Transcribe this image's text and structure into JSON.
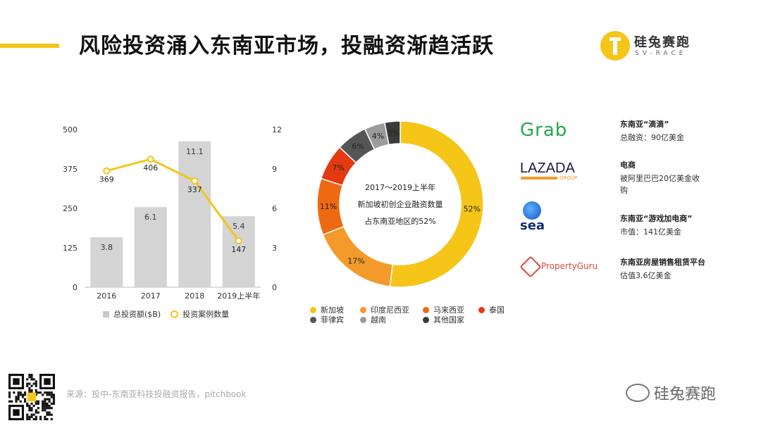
{
  "title": "风险投资涌入东南亚市场，投融资渐趋活跃",
  "brand": {
    "name": "硅兔赛跑",
    "sub": "SV-RACE"
  },
  "colors": {
    "accent": "#f5c518",
    "bar": "#d4d4d4",
    "line": "#f5c518"
  },
  "chart_data": [
    {
      "type": "bar",
      "categories": [
        "2016",
        "2017",
        "2018",
        "2019上半年"
      ],
      "series": [
        {
          "name": "总投资额($B)",
          "axis": "right",
          "values": [
            3.8,
            6.1,
            11.1,
            5.4
          ],
          "labels": [
            "3.8",
            "6.1",
            "11.1",
            "5.4"
          ]
        },
        {
          "name": "投资案例数量",
          "type": "line",
          "axis": "left",
          "values": [
            369,
            406,
            337,
            147
          ],
          "labels": [
            "369",
            "406",
            "337",
            "147"
          ]
        }
      ],
      "left_axis": {
        "ticks": [
          "0",
          "125",
          "250",
          "375",
          "500"
        ],
        "ylim": [
          0,
          500
        ]
      },
      "right_axis": {
        "ticks": [
          "0",
          "3",
          "6",
          "9",
          "12"
        ],
        "ylim": [
          0,
          12
        ]
      },
      "legend": "bottom"
    },
    {
      "type": "pie",
      "donut": true,
      "center_text": [
        "2017～2019上半年",
        "新加坡初创企业融资数量",
        "占东南亚地区的52%"
      ],
      "slices": [
        {
          "label": "新加坡",
          "value": 52,
          "text": "52%",
          "color": "#f5c518"
        },
        {
          "label": "印度尼西亚",
          "value": 17,
          "text": "17%",
          "color": "#f39a2b"
        },
        {
          "label": "马来西亚",
          "value": 11,
          "text": "11%",
          "color": "#ee6a12"
        },
        {
          "label": "泰国",
          "value": 7,
          "text": "7%",
          "color": "#e53a10"
        },
        {
          "label": "菲律宾",
          "value": 6,
          "text": "6%",
          "color": "#555555"
        },
        {
          "label": "越南",
          "value": 4,
          "text": "4%",
          "color": "#9b9b9b"
        },
        {
          "label": "其他国家",
          "value": 3,
          "text": "3%",
          "color": "#3b3b3b"
        }
      ],
      "legend": "bottom"
    }
  ],
  "companies": [
    {
      "logo": "Grab",
      "name": "东南亚“滴滴”",
      "desc": "总融资：90亿美金"
    },
    {
      "logo": "LAZADA",
      "logo_sub": "GROUP",
      "name": "电商",
      "desc": "被阿里巴巴20亿美金收购"
    },
    {
      "logo": "sea",
      "name": "东南亚“游戏加电商”",
      "desc": "市值：141亿美金"
    },
    {
      "logo": "PropertyGuru",
      "name": "东南亚房屋销售租赁平台",
      "desc": "估值3.6亿美金"
    }
  ],
  "source": "来源：投中-东南亚科技投融资报告，pitchbook",
  "watermark": "硅兔赛跑"
}
